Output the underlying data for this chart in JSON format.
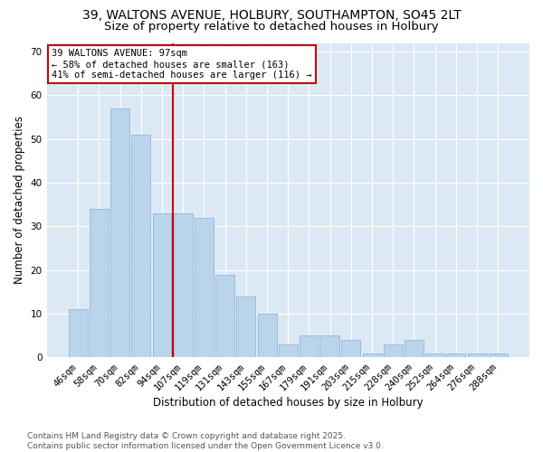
{
  "title_line1": "39, WALTONS AVENUE, HOLBURY, SOUTHAMPTON, SO45 2LT",
  "title_line2": "Size of property relative to detached houses in Holbury",
  "xlabel": "Distribution of detached houses by size in Holbury",
  "ylabel": "Number of detached properties",
  "categories": [
    "46sqm",
    "58sqm",
    "70sqm",
    "82sqm",
    "94sqm",
    "107sqm",
    "119sqm",
    "131sqm",
    "143sqm",
    "155sqm",
    "167sqm",
    "179sqm",
    "191sqm",
    "203sqm",
    "215sqm",
    "228sqm",
    "240sqm",
    "252sqm",
    "264sqm",
    "276sqm",
    "288sqm"
  ],
  "values": [
    11,
    34,
    57,
    51,
    33,
    33,
    32,
    19,
    14,
    10,
    3,
    5,
    5,
    4,
    1,
    3,
    4,
    1,
    1,
    1,
    1
  ],
  "bar_color": "#bad4eb",
  "bar_edge_color": "#93b8d8",
  "vline_color": "#cc0000",
  "annotation_line1": "39 WALTONS AVENUE: 97sqm",
  "annotation_line2": "← 58% of detached houses are smaller (163)",
  "annotation_line3": "41% of semi-detached houses are larger (116) →",
  "annotation_box_color": "#ffffff",
  "annotation_border_color": "#cc0000",
  "ylim": [
    0,
    72
  ],
  "yticks": [
    0,
    10,
    20,
    30,
    40,
    50,
    60,
    70
  ],
  "plot_bg_color": "#dce9f5",
  "footer_line1": "Contains HM Land Registry data © Crown copyright and database right 2025.",
  "footer_line2": "Contains public sector information licensed under the Open Government Licence v3.0.",
  "title_fontsize": 10,
  "subtitle_fontsize": 9.5,
  "axis_label_fontsize": 8.5,
  "tick_fontsize": 7.5,
  "annotation_fontsize": 7.5,
  "footer_fontsize": 6.5
}
